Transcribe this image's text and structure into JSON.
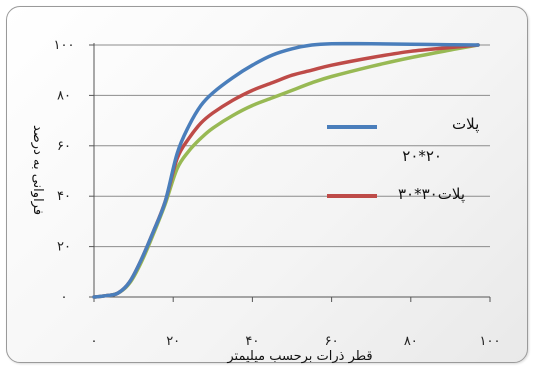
{
  "chart_data": {
    "type": "line",
    "title": "",
    "xlabel": "قطر ذرات برحسب میلیمتر",
    "ylabel": "فراوانی به درصد",
    "xlim": [
      0,
      100
    ],
    "ylim": [
      0,
      100
    ],
    "x_ticks": [
      "۰",
      "۲۰",
      "۴۰",
      "۶۰",
      "۸۰",
      "۱۰۰"
    ],
    "y_ticks": [
      "۰",
      "۲۰",
      "۴۰",
      "۶۰",
      "۸۰",
      "۱۰۰"
    ],
    "grid": "horizontal",
    "legend_position": "center-right",
    "series": [
      {
        "name_line1": "پلات",
        "name_line2": "۲۰*۲۰",
        "color": "#4a7ebb",
        "x": [
          0,
          3,
          6,
          9,
          12,
          15,
          18,
          21,
          24,
          27,
          30,
          35,
          40,
          45,
          50,
          55,
          60,
          70,
          80,
          90,
          97
        ],
        "y": [
          0,
          0.5,
          1.5,
          6,
          15,
          26,
          38,
          57,
          68,
          76,
          81,
          87,
          92,
          96,
          98.5,
          100,
          100.5,
          100.5,
          100.3,
          100.1,
          100
        ]
      },
      {
        "name_line1": "پلات۳۰*۳۰",
        "name_line2": "",
        "color": "#be4b48",
        "x": [
          0,
          3,
          6,
          9,
          12,
          15,
          18,
          21,
          24,
          27,
          30,
          35,
          40,
          45,
          50,
          55,
          60,
          70,
          80,
          90,
          97
        ],
        "y": [
          0,
          0.5,
          1.5,
          6,
          15,
          26,
          38,
          55,
          63,
          69,
          73,
          78,
          82,
          85,
          88,
          90,
          92,
          95,
          97.5,
          99,
          100
        ]
      },
      {
        "name_line1": "",
        "name_line2": "",
        "color": "#98b954",
        "x": [
          0,
          3,
          6,
          9,
          12,
          15,
          18,
          21,
          24,
          27,
          30,
          35,
          40,
          45,
          50,
          55,
          60,
          70,
          80,
          90,
          97
        ],
        "y": [
          0,
          0.5,
          1.5,
          5.5,
          14,
          25,
          37,
          51,
          58,
          63,
          67,
          72,
          76,
          79,
          82,
          85,
          87.5,
          91.5,
          95,
          98,
          100
        ]
      }
    ]
  }
}
